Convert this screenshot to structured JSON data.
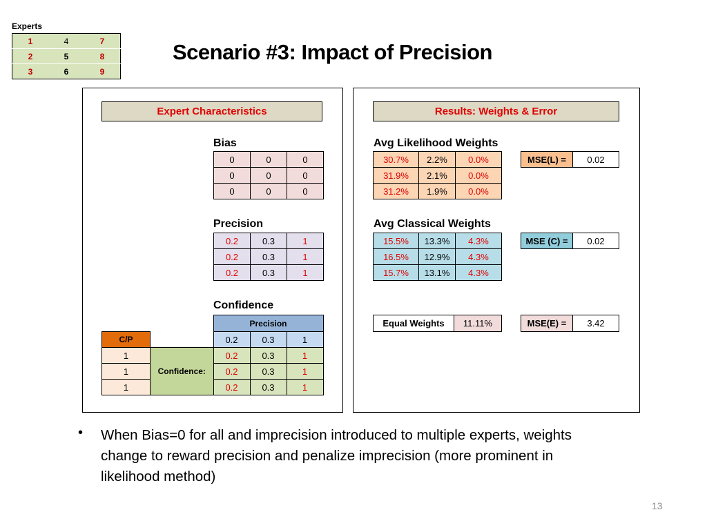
{
  "experts": {
    "label": "Experts",
    "rows": [
      [
        "1",
        "4",
        "7"
      ],
      [
        "2",
        "5",
        "8"
      ],
      [
        "3",
        "6",
        "9"
      ]
    ]
  },
  "title": "Scenario #3: Impact of Precision",
  "left_panel": {
    "header": "Expert Characteristics",
    "bias": {
      "label": "Bias",
      "rows": [
        [
          "0",
          "0",
          "0"
        ],
        [
          "0",
          "0",
          "0"
        ],
        [
          "0",
          "0",
          "0"
        ]
      ]
    },
    "precision": {
      "label": "Precision",
      "rows": [
        [
          "0.2",
          "0.3",
          "1"
        ],
        [
          "0.2",
          "0.3",
          "1"
        ],
        [
          "0.2",
          "0.3",
          "1"
        ]
      ]
    },
    "confidence": {
      "label": "Confidence",
      "precision_header": "Precision",
      "cp_label": "C/P",
      "precision_values": [
        "0.2",
        "0.3",
        "1"
      ],
      "cp_values": [
        "1",
        "1",
        "1"
      ],
      "confidence_label": "Confidence:",
      "rows": [
        [
          "0.2",
          "0.3",
          "1"
        ],
        [
          "0.2",
          "0.3",
          "1"
        ],
        [
          "0.2",
          "0.3",
          "1"
        ]
      ]
    }
  },
  "right_panel": {
    "header": "Results: Weights & Error",
    "likelihood": {
      "label": "Avg Likelihood Weights",
      "rows": [
        [
          "30.7%",
          "2.2%",
          "0.0%"
        ],
        [
          "31.9%",
          "2.1%",
          "0.0%"
        ],
        [
          "31.2%",
          "1.9%",
          "0.0%"
        ]
      ],
      "mse_label": "MSE(L) =",
      "mse_value": "0.02"
    },
    "classical": {
      "label": "Avg Classical Weights",
      "rows": [
        [
          "15.5%",
          "13.3%",
          "4.3%"
        ],
        [
          "16.5%",
          "12.9%",
          "4.3%"
        ],
        [
          "15.7%",
          "13.1%",
          "4.3%"
        ]
      ],
      "mse_label": "MSE (C) =",
      "mse_value": "0.02"
    },
    "equal": {
      "label": "Equal Weights",
      "value": "11.11%",
      "mse_label": "MSE(E) =",
      "mse_value": "3.42"
    }
  },
  "bullet": {
    "symbol": "•",
    "text": "When Bias=0 for all and imprecision introduced to multiple experts, weights change to reward precision and penalize imprecision (more prominent in likelihood method)"
  },
  "page_number": "13",
  "colors": {
    "header_bg": "#ddd9c4",
    "header_text": "#e00000",
    "experts_bg": "#d8e4bc",
    "bias_bg": "#f2dcdb",
    "precision_bg": "#e4dfec",
    "likelihood_bg": "#fcd5b4",
    "classical_bg": "#b7dee8",
    "confidence_header_bg": "#95b3d7",
    "cp_header_bg": "#e26b0a"
  }
}
